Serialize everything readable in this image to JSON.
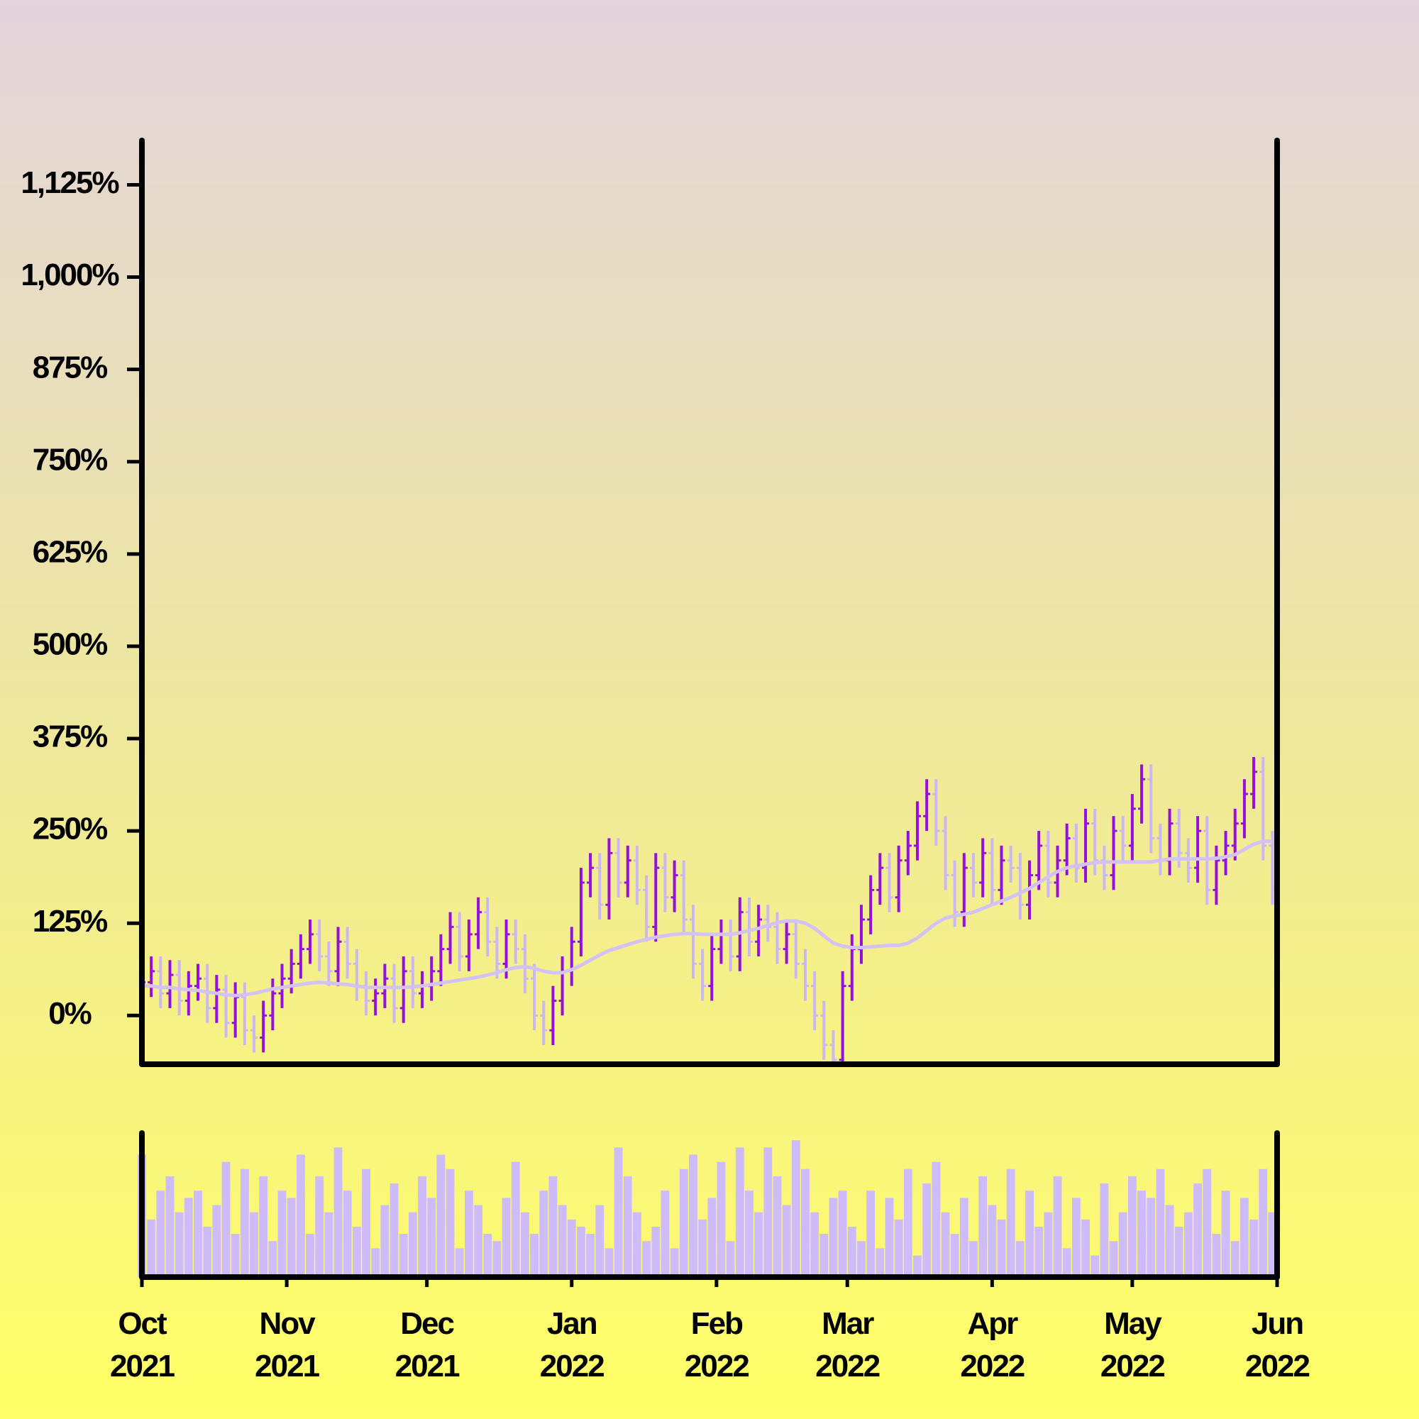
{
  "chart_data": {
    "type": "ohlc",
    "x": [
      0,
      2,
      4,
      6,
      8,
      10,
      12,
      14,
      16,
      18,
      20,
      22,
      24,
      26,
      28,
      30,
      32,
      34,
      36,
      38,
      40,
      42,
      44,
      46,
      48,
      50,
      52,
      54,
      56,
      58,
      60,
      62,
      64,
      66,
      68,
      70,
      72,
      74,
      76,
      78,
      80,
      82,
      84,
      86,
      88,
      90,
      92,
      94,
      96,
      98,
      100,
      102,
      104,
      106,
      108,
      110,
      112,
      114,
      116,
      118,
      120,
      122,
      124,
      126,
      128,
      130,
      132,
      134,
      136,
      138,
      140,
      142,
      144,
      146,
      148,
      150,
      152,
      154,
      156,
      158,
      160,
      162,
      164,
      166,
      168,
      170,
      172,
      174,
      176,
      178,
      180,
      182,
      184,
      186,
      188,
      190,
      192,
      194,
      196,
      198,
      200,
      202,
      204,
      206,
      208,
      210,
      212,
      214,
      216,
      218,
      220,
      222,
      224,
      226,
      228,
      230,
      232,
      234,
      236,
      238,
      240,
      242
    ],
    "open": [
      35,
      45,
      60,
      30,
      55,
      20,
      40,
      50,
      10,
      35,
      -10,
      25,
      -20,
      -30,
      0,
      30,
      50,
      70,
      90,
      110,
      80,
      60,
      100,
      70,
      40,
      20,
      30,
      50,
      10,
      60,
      30,
      40,
      60,
      90,
      120,
      80,
      110,
      140,
      100,
      70,
      110,
      90,
      50,
      0,
      -20,
      20,
      60,
      100,
      180,
      200,
      150,
      220,
      180,
      210,
      170,
      120,
      200,
      160,
      190,
      130,
      70,
      40,
      90,
      110,
      80,
      140,
      100,
      130,
      120,
      90,
      110,
      70,
      40,
      0,
      -40,
      -60,
      40,
      90,
      130,
      170,
      200,
      160,
      210,
      230,
      270,
      300,
      250,
      190,
      140,
      200,
      180,
      220,
      170,
      210,
      200,
      150,
      190,
      230,
      180,
      210,
      240,
      200,
      260,
      210,
      190,
      250,
      230,
      280,
      320,
      240,
      210,
      260,
      220,
      200,
      250,
      170,
      210,
      230,
      260,
      300,
      330,
      230
    ],
    "high": [
      65,
      80,
      80,
      75,
      75,
      60,
      70,
      70,
      55,
      55,
      45,
      45,
      0,
      20,
      50,
      70,
      90,
      110,
      130,
      130,
      100,
      120,
      120,
      90,
      60,
      50,
      70,
      70,
      80,
      80,
      60,
      80,
      110,
      140,
      140,
      130,
      160,
      160,
      120,
      130,
      130,
      110,
      70,
      20,
      40,
      80,
      120,
      200,
      220,
      220,
      240,
      240,
      230,
      230,
      190,
      220,
      220,
      210,
      210,
      150,
      90,
      110,
      130,
      130,
      160,
      160,
      150,
      150,
      140,
      130,
      130,
      90,
      60,
      20,
      -20,
      60,
      110,
      150,
      190,
      220,
      220,
      230,
      250,
      290,
      320,
      320,
      270,
      210,
      220,
      220,
      240,
      240,
      230,
      230,
      220,
      210,
      250,
      250,
      230,
      260,
      260,
      280,
      280,
      230,
      270,
      270,
      300,
      340,
      340,
      260,
      280,
      280,
      240,
      270,
      270,
      230,
      250,
      280,
      320,
      350,
      350,
      250
    ],
    "low": [
      15,
      25,
      10,
      10,
      0,
      0,
      20,
      -10,
      -10,
      -30,
      -30,
      -40,
      -50,
      -50,
      -20,
      10,
      30,
      50,
      70,
      60,
      40,
      40,
      50,
      20,
      0,
      0,
      10,
      -10,
      -10,
      10,
      10,
      20,
      40,
      70,
      60,
      60,
      90,
      80,
      50,
      50,
      70,
      30,
      -20,
      -40,
      -40,
      0,
      40,
      80,
      160,
      130,
      130,
      160,
      160,
      150,
      100,
      100,
      140,
      140,
      110,
      50,
      20,
      20,
      70,
      60,
      60,
      80,
      80,
      100,
      70,
      70,
      50,
      20,
      -20,
      -60,
      -80,
      -80,
      20,
      70,
      110,
      150,
      140,
      140,
      190,
      210,
      250,
      230,
      170,
      120,
      120,
      160,
      160,
      150,
      150,
      180,
      130,
      130,
      170,
      160,
      160,
      190,
      180,
      180,
      190,
      170,
      170,
      210,
      210,
      260,
      220,
      190,
      190,
      200,
      180,
      180,
      150,
      150,
      190,
      210,
      240,
      280,
      210,
      150
    ],
    "close": [
      45,
      60,
      30,
      55,
      20,
      40,
      50,
      10,
      35,
      -10,
      25,
      -20,
      -30,
      0,
      30,
      50,
      70,
      90,
      110,
      80,
      60,
      100,
      70,
      40,
      20,
      30,
      50,
      10,
      60,
      30,
      40,
      60,
      90,
      120,
      80,
      110,
      140,
      100,
      70,
      110,
      90,
      50,
      0,
      -20,
      20,
      60,
      100,
      180,
      200,
      150,
      220,
      180,
      210,
      170,
      120,
      200,
      160,
      190,
      130,
      70,
      40,
      90,
      110,
      80,
      140,
      100,
      130,
      120,
      90,
      110,
      70,
      40,
      0,
      -40,
      -60,
      40,
      90,
      130,
      170,
      200,
      160,
      210,
      230,
      270,
      300,
      250,
      190,
      140,
      200,
      180,
      220,
      170,
      210,
      200,
      150,
      190,
      230,
      180,
      210,
      240,
      200,
      260,
      210,
      190,
      250,
      230,
      280,
      320,
      240,
      210,
      260,
      220,
      200,
      250,
      170,
      210,
      230,
      260,
      300,
      330,
      230,
      170
    ],
    "ma": [
      40,
      40,
      38,
      38,
      36,
      35,
      34,
      32,
      30,
      28,
      27,
      28,
      30,
      33,
      36,
      38,
      40,
      42,
      44,
      45,
      44,
      43,
      42,
      40,
      38,
      38,
      38,
      38,
      38,
      39,
      40,
      42,
      44,
      46,
      48,
      50,
      52,
      55,
      58,
      62,
      65,
      66,
      64,
      60,
      58,
      58,
      62,
      68,
      75,
      82,
      88,
      92,
      96,
      100,
      103,
      106,
      108,
      110,
      111,
      111,
      110,
      110,
      110,
      110,
      112,
      115,
      118,
      122,
      126,
      128,
      128,
      125,
      118,
      108,
      98,
      94,
      92,
      92,
      93,
      94,
      95,
      95,
      98,
      105,
      115,
      125,
      132,
      135,
      137,
      140,
      145,
      150,
      155,
      160,
      166,
      172,
      180,
      188,
      195,
      200,
      203,
      205,
      207,
      208,
      208,
      208,
      208,
      208,
      208,
      210,
      212,
      212,
      212,
      212,
      212,
      213,
      215,
      218,
      225,
      232,
      236,
      236
    ],
    "volume": [
      85,
      40,
      60,
      70,
      45,
      55,
      60,
      35,
      50,
      80,
      30,
      75,
      45,
      70,
      25,
      60,
      55,
      85,
      30,
      70,
      45,
      90,
      60,
      35,
      75,
      20,
      50,
      65,
      30,
      45,
      70,
      55,
      85,
      75,
      20,
      60,
      50,
      30,
      25,
      55,
      80,
      45,
      30,
      60,
      70,
      50,
      40,
      35,
      30,
      50,
      20,
      90,
      70,
      45,
      25,
      35,
      60,
      20,
      75,
      85,
      40,
      55,
      80,
      25,
      90,
      60,
      45,
      90,
      70,
      50,
      95,
      75,
      45,
      30,
      55,
      60,
      35,
      25,
      60,
      20,
      55,
      40,
      75,
      15,
      65,
      80,
      45,
      30,
      55,
      25,
      70,
      50,
      40,
      75,
      25,
      60,
      35,
      45,
      70,
      20,
      55,
      40,
      15,
      65,
      25,
      45,
      70,
      60,
      55,
      75,
      50,
      35,
      45,
      65,
      75,
      30,
      60,
      25,
      55,
      40,
      75,
      45
    ],
    "xlim": [
      0,
      243
    ],
    "xticks": [
      {
        "value": 0,
        "label": "Oct 2021"
      },
      {
        "value": 31,
        "label": "Nov 2021"
      },
      {
        "value": 61,
        "label": "Dec 2021"
      },
      {
        "value": 92,
        "label": "Jan 2022"
      },
      {
        "value": 123,
        "label": "Feb 2022"
      },
      {
        "value": 151,
        "label": "Mar 2022"
      },
      {
        "value": 182,
        "label": "Apr 2022"
      },
      {
        "value": 212,
        "label": "May 2022"
      },
      {
        "value": 243,
        "label": "Jun 2022"
      }
    ],
    "ylim": [
      -66,
      1185
    ],
    "yticks": [
      {
        "value": 0,
        "label": "0%"
      },
      {
        "value": 125,
        "label": "125%"
      },
      {
        "value": 250,
        "label": "250%"
      },
      {
        "value": 375,
        "label": "375%"
      },
      {
        "value": 500,
        "label": "500%"
      },
      {
        "value": 625,
        "label": "625%"
      },
      {
        "value": 750,
        "label": "750%"
      },
      {
        "value": 875,
        "label": "875%"
      },
      {
        "value": 1000,
        "label": "1,000%"
      },
      {
        "value": 1125,
        "label": "1,125%"
      }
    ],
    "vlim": [
      0,
      100
    ],
    "up_color": "#9410dd",
    "down_color": "#cbb7f2",
    "ma_color": "#d4c2f6",
    "volume_color": "#cdbbfa"
  }
}
